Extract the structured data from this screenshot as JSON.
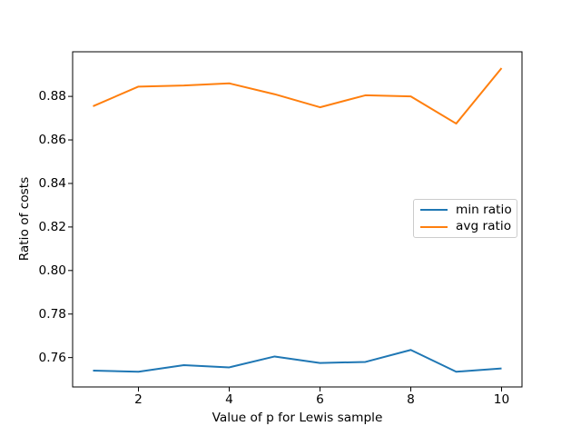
{
  "window": {
    "background": "#ffffff"
  },
  "chart_data": {
    "type": "line",
    "title": "",
    "xlabel": "Value of p for Lewis sample",
    "ylabel": "Ratio of costs",
    "x": [
      1,
      2,
      3,
      4,
      5,
      6,
      7,
      8,
      9,
      10
    ],
    "series": [
      {
        "name": "min ratio",
        "color": "#1f77b4",
        "values": [
          0.754,
          0.7535,
          0.7565,
          0.7555,
          0.7605,
          0.7575,
          0.758,
          0.7635,
          0.7535,
          0.755
        ]
      },
      {
        "name": "avg ratio",
        "color": "#ff7f0e",
        "values": [
          0.8755,
          0.8845,
          0.885,
          0.886,
          0.881,
          0.875,
          0.8805,
          0.88,
          0.8675,
          0.893
        ]
      }
    ],
    "xlim": [
      0.55,
      10.45
    ],
    "ylim": [
      0.7465,
      0.9005
    ],
    "xticks": [
      2,
      4,
      6,
      8,
      10
    ],
    "xtick_labels": [
      "2",
      "4",
      "6",
      "8",
      "10"
    ],
    "yticks": [
      0.76,
      0.78,
      0.8,
      0.82,
      0.84,
      0.86,
      0.88
    ],
    "ytick_labels": [
      "0.76",
      "0.78",
      "0.80",
      "0.82",
      "0.84",
      "0.86",
      "0.88"
    ],
    "grid": false,
    "legend": {
      "position": "center-right",
      "entries": [
        "min ratio",
        "avg ratio"
      ]
    },
    "axis_color": "#000000",
    "text_color": "#000000",
    "legend_border_color": "#cccccc"
  }
}
